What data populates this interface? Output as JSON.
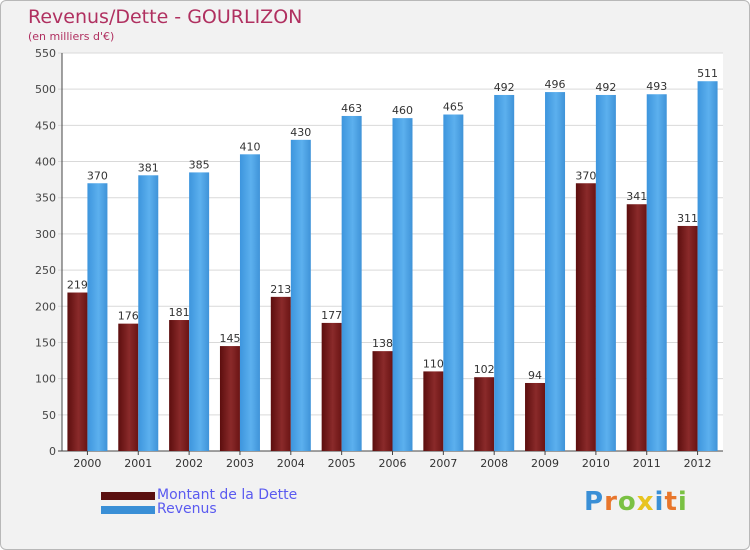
{
  "title": "Revenus/Dette - GOURLIZON",
  "subtitle": "(en milliers d'€)",
  "logo": {
    "text": "Proxiti",
    "colors": [
      "#3a8fd6",
      "#e8762c",
      "#7ac143",
      "#e8c420",
      "#3a8fd6",
      "#e8762c",
      "#7ac143"
    ]
  },
  "colors": {
    "dette": "#7a1a1a",
    "revenus": "#4aa3e8",
    "title": "#b03060",
    "legend_text": "#5a5af0"
  },
  "chart_data": {
    "type": "bar",
    "title": "Revenus/Dette - GOURLIZON",
    "ylabel": "(en milliers d'€)",
    "xlabel": "",
    "ylim": [
      0,
      550
    ],
    "yticks": [
      0,
      50,
      100,
      150,
      200,
      250,
      300,
      350,
      400,
      450,
      500,
      550
    ],
    "grid": true,
    "legend": "bottom-left",
    "categories": [
      "2000",
      "2001",
      "2002",
      "2003",
      "2004",
      "2005",
      "2006",
      "2007",
      "2008",
      "2009",
      "2010",
      "2011",
      "2012"
    ],
    "series": [
      {
        "name": "Montant de la Dette",
        "values": [
          219,
          176,
          181,
          145,
          213,
          177,
          138,
          110,
          102,
          94,
          370,
          341,
          311
        ]
      },
      {
        "name": "Revenus",
        "values": [
          370,
          381,
          385,
          410,
          430,
          463,
          460,
          465,
          492,
          496,
          492,
          493,
          511
        ]
      }
    ]
  }
}
